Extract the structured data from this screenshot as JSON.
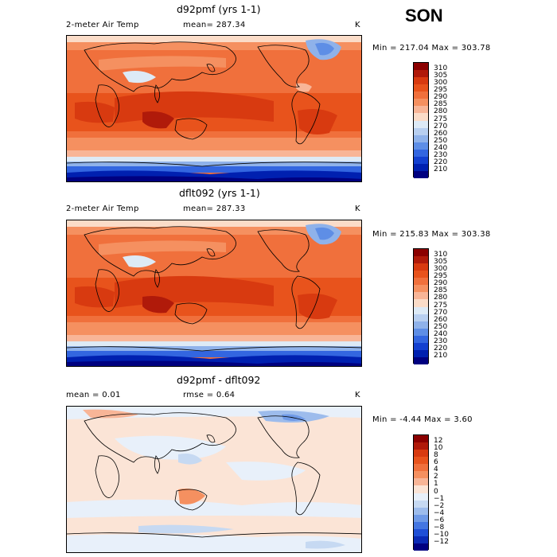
{
  "season": "SON",
  "panels": [
    {
      "title": "d92pmf (yrs 1-1)",
      "variable": "2-meter Air Temp",
      "stat_left": "",
      "stat_mid": "mean= 287.34",
      "units": "K",
      "minmax": "Min = 217.04 Max = 303.78",
      "levels": [
        "310",
        "305",
        "300",
        "295",
        "290",
        "285",
        "280",
        "275",
        "270",
        "260",
        "250",
        "240",
        "230",
        "220",
        "210"
      ]
    },
    {
      "title": "dflt092 (yrs 1-1)",
      "variable": "2-meter Air Temp",
      "stat_left": "",
      "stat_mid": "mean= 287.33",
      "units": "K",
      "minmax": "Min = 215.83 Max = 303.38",
      "levels": [
        "310",
        "305",
        "300",
        "295",
        "290",
        "285",
        "280",
        "275",
        "270",
        "260",
        "250",
        "240",
        "230",
        "220",
        "210"
      ]
    },
    {
      "title": "d92pmf - dflt092",
      "variable": "",
      "stat_left": "mean =    0.01",
      "stat_mid": "rmse =    0.64",
      "units": "K",
      "minmax": "Min =  -4.44 Max =   3.60",
      "levels": [
        "12",
        "10",
        "8",
        "6",
        "4",
        "2",
        "1",
        "0",
        "−1",
        "−2",
        "−4",
        "−6",
        "−8",
        "−10",
        "−12"
      ]
    }
  ],
  "colors": {
    "abs_scale": [
      "#8b0000",
      "#b01a0a",
      "#d83a10",
      "#e8531c",
      "#f0703c",
      "#f59060",
      "#f8b597",
      "#fbdcc8",
      "#ddeaf6",
      "#b8cff0",
      "#8fb2ea",
      "#5e8ee6",
      "#3366e0",
      "#1340d0",
      "#0020b0",
      "#000080"
    ],
    "diff_scale": [
      "#8b0000",
      "#b01a0a",
      "#d83a10",
      "#e8531c",
      "#f0703c",
      "#f59060",
      "#f8b597",
      "#fbe4d6",
      "#e8f0fa",
      "#c6d9f2",
      "#9dbcec",
      "#6f9ae7",
      "#4476e2",
      "#1f4fd6",
      "#0a2ab5",
      "#000080"
    ]
  }
}
